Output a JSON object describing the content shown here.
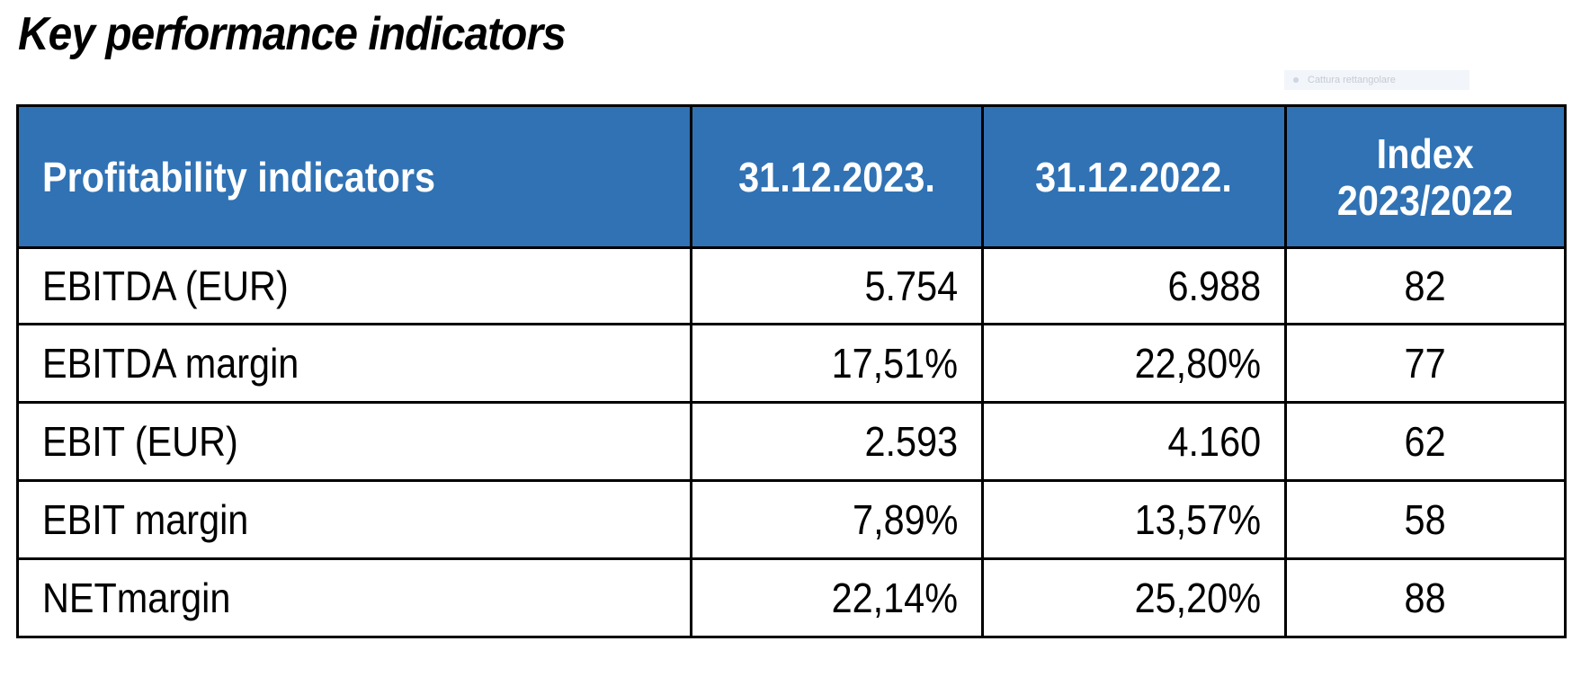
{
  "title": "Key performance indicators",
  "capture_widget": {
    "label": "Cattura rettangolare"
  },
  "table": {
    "headers": {
      "label": "Profitability indicators",
      "col_2023": "31.12.2023.",
      "col_2022": "31.12.2022.",
      "index_line1": "Index",
      "index_line2": "2023/2022"
    },
    "rows": [
      {
        "label": "EBITDA (EUR)",
        "v2023": "5.754",
        "v2022": "6.988",
        "index": "82"
      },
      {
        "label": "EBITDA margin",
        "v2023": "17,51%",
        "v2022": "22,80%",
        "index": "77"
      },
      {
        "label": "EBIT (EUR)",
        "v2023": "2.593",
        "v2022": "4.160",
        "index": "62"
      },
      {
        "label": "EBIT margin",
        "v2023": "7,89%",
        "v2022": "13,57%",
        "index": "58"
      },
      {
        "label": "NETmargin",
        "v2023": "22,14%",
        "v2022": "25,20%",
        "index": "88"
      }
    ]
  },
  "colors": {
    "header_bg": "#3072b4",
    "header_text": "#ffffff",
    "border": "#000000"
  }
}
